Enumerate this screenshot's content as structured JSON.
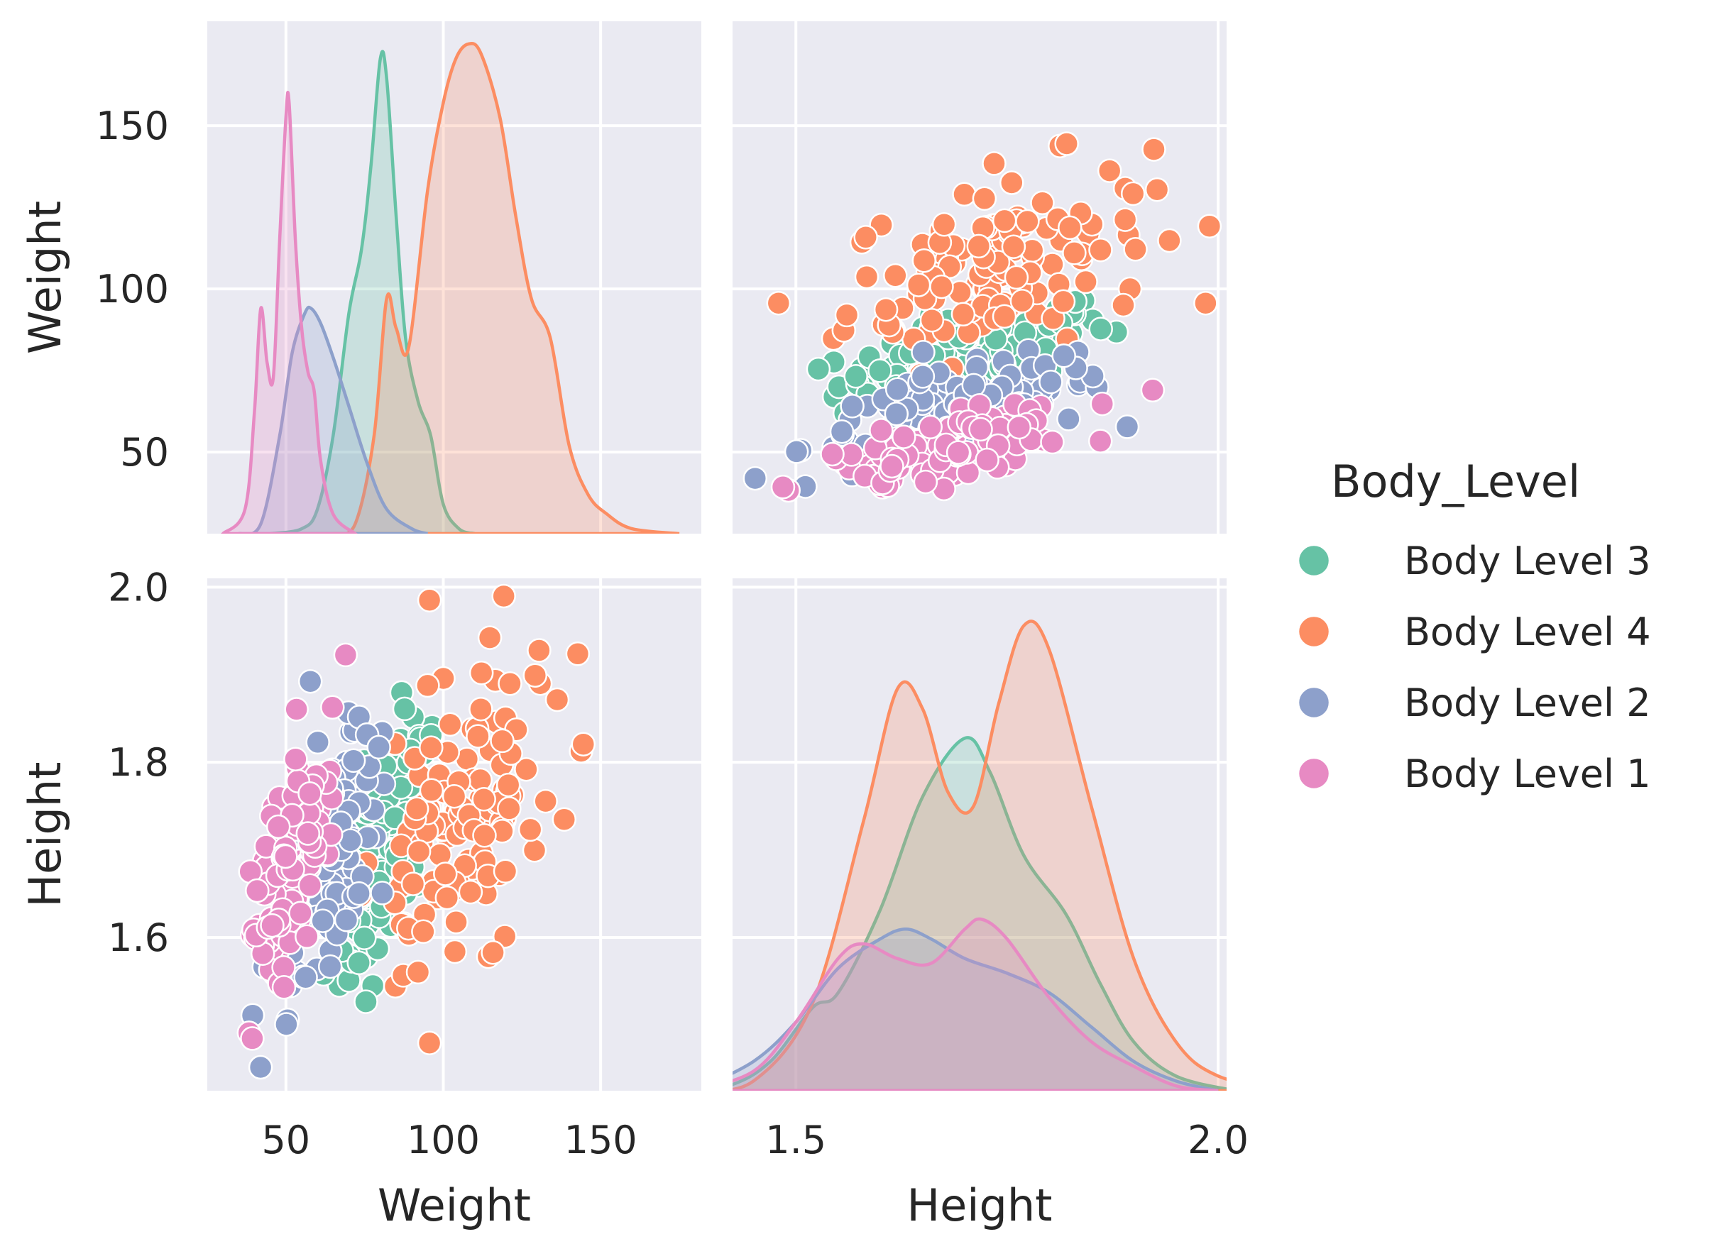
{
  "chart_data": {
    "type": "pairplot",
    "variables": [
      "Weight",
      "Height"
    ],
    "axis_labels": {
      "weight": "Weight",
      "height": "Height"
    },
    "ticks": {
      "weight": [
        50,
        100,
        150
      ],
      "height": [
        1.6,
        1.8,
        2.0
      ]
    },
    "tick_labels": {
      "weight": [
        "50",
        "100",
        "150"
      ],
      "height_y": [
        "1.6",
        "1.8",
        "2.0"
      ],
      "height_x": [
        "1.5",
        "2.0"
      ]
    },
    "ranges": {
      "weight": [
        25,
        182
      ],
      "height": [
        1.425,
        2.01
      ]
    },
    "hue_title": "Body_Level",
    "series": [
      {
        "name": "Body Level 3",
        "color": "#66c2a5",
        "weight_mean": 80,
        "weight_sd": 7.5,
        "height_mean": 1.71,
        "height_sd": 0.08,
        "weight_kde": [
          [
            45,
            0
          ],
          [
            55,
            0.01
          ],
          [
            60,
            0.05
          ],
          [
            65,
            0.2
          ],
          [
            70,
            0.45
          ],
          [
            74,
            0.58
          ],
          [
            77,
            0.75
          ],
          [
            80,
            0.97
          ],
          [
            82,
            0.93
          ],
          [
            85,
            0.65
          ],
          [
            88,
            0.4
          ],
          [
            92,
            0.27
          ],
          [
            96,
            0.2
          ],
          [
            100,
            0.06
          ],
          [
            105,
            0.01
          ],
          [
            110,
            0
          ]
        ],
        "height_kde": [
          [
            1.36,
            0
          ],
          [
            1.42,
            0.01
          ],
          [
            1.47,
            0.06
          ],
          [
            1.52,
            0.17
          ],
          [
            1.55,
            0.2
          ],
          [
            1.6,
            0.37
          ],
          [
            1.65,
            0.6
          ],
          [
            1.7,
            0.72
          ],
          [
            1.73,
            0.65
          ],
          [
            1.77,
            0.48
          ],
          [
            1.82,
            0.36
          ],
          [
            1.86,
            0.22
          ],
          [
            1.9,
            0.1
          ],
          [
            1.95,
            0.03
          ],
          [
            2.02,
            0
          ]
        ]
      },
      {
        "name": "Body Level 4",
        "color": "#fc8d62",
        "weight_mean": 108,
        "weight_sd": 17,
        "height_mean": 1.74,
        "height_sd": 0.09,
        "weight_kde": [
          [
            65,
            0
          ],
          [
            72,
            0.02
          ],
          [
            78,
            0.2
          ],
          [
            82,
            0.48
          ],
          [
            85,
            0.42
          ],
          [
            89,
            0.38
          ],
          [
            95,
            0.7
          ],
          [
            100,
            0.88
          ],
          [
            104,
            0.97
          ],
          [
            108,
            1.0
          ],
          [
            112,
            0.98
          ],
          [
            118,
            0.85
          ],
          [
            123,
            0.65
          ],
          [
            128,
            0.48
          ],
          [
            134,
            0.4
          ],
          [
            140,
            0.18
          ],
          [
            146,
            0.08
          ],
          [
            152,
            0.04
          ],
          [
            160,
            0.01
          ],
          [
            175,
            0
          ]
        ],
        "height_kde": [
          [
            1.38,
            0
          ],
          [
            1.45,
            0.02
          ],
          [
            1.52,
            0.18
          ],
          [
            1.58,
            0.55
          ],
          [
            1.62,
            0.82
          ],
          [
            1.65,
            0.78
          ],
          [
            1.68,
            0.61
          ],
          [
            1.71,
            0.58
          ],
          [
            1.74,
            0.79
          ],
          [
            1.77,
            0.95
          ],
          [
            1.8,
            0.9
          ],
          [
            1.85,
            0.58
          ],
          [
            1.9,
            0.27
          ],
          [
            1.95,
            0.1
          ],
          [
            2.0,
            0.03
          ],
          [
            2.08,
            0
          ]
        ]
      },
      {
        "name": "Body Level 2",
        "color": "#8da0cb",
        "weight_mean": 62,
        "weight_sd": 8,
        "height_mean": 1.69,
        "height_sd": 0.09,
        "weight_kde": [
          [
            35,
            0
          ],
          [
            42,
            0.02
          ],
          [
            48,
            0.2
          ],
          [
            52,
            0.37
          ],
          [
            56,
            0.45
          ],
          [
            58,
            0.46
          ],
          [
            61,
            0.43
          ],
          [
            65,
            0.36
          ],
          [
            70,
            0.26
          ],
          [
            76,
            0.14
          ],
          [
            82,
            0.05
          ],
          [
            90,
            0.01
          ],
          [
            95,
            0
          ]
        ],
        "height_kde": [
          [
            1.38,
            0
          ],
          [
            1.45,
            0.06
          ],
          [
            1.5,
            0.14
          ],
          [
            1.55,
            0.25
          ],
          [
            1.6,
            0.31
          ],
          [
            1.63,
            0.33
          ],
          [
            1.66,
            0.31
          ],
          [
            1.7,
            0.27
          ],
          [
            1.75,
            0.24
          ],
          [
            1.8,
            0.2
          ],
          [
            1.85,
            0.13
          ],
          [
            1.9,
            0.06
          ],
          [
            1.95,
            0.02
          ],
          [
            2.0,
            0
          ]
        ]
      },
      {
        "name": "Body Level 1",
        "color": "#e78ac3",
        "weight_mean": 50,
        "weight_sd": 6,
        "height_mean": 1.67,
        "height_sd": 0.08,
        "weight_kde": [
          [
            30,
            0
          ],
          [
            37,
            0.05
          ],
          [
            40,
            0.25
          ],
          [
            42,
            0.46
          ],
          [
            44,
            0.35
          ],
          [
            46,
            0.32
          ],
          [
            48,
            0.6
          ],
          [
            50,
            0.85
          ],
          [
            51,
            0.88
          ],
          [
            53,
            0.6
          ],
          [
            55,
            0.42
          ],
          [
            57,
            0.33
          ],
          [
            59,
            0.29
          ],
          [
            61,
            0.15
          ],
          [
            65,
            0.04
          ],
          [
            72,
            0
          ]
        ],
        "height_kde": [
          [
            1.38,
            0
          ],
          [
            1.45,
            0.04
          ],
          [
            1.5,
            0.14
          ],
          [
            1.55,
            0.27
          ],
          [
            1.58,
            0.3
          ],
          [
            1.62,
            0.27
          ],
          [
            1.66,
            0.26
          ],
          [
            1.7,
            0.33
          ],
          [
            1.72,
            0.35
          ],
          [
            1.75,
            0.31
          ],
          [
            1.8,
            0.19
          ],
          [
            1.85,
            0.1
          ],
          [
            1.9,
            0.05
          ],
          [
            1.95,
            0.01
          ],
          [
            2.0,
            0
          ]
        ]
      }
    ],
    "scatter_points_per_series": 140,
    "grid": true,
    "legend_placement": "right"
  }
}
